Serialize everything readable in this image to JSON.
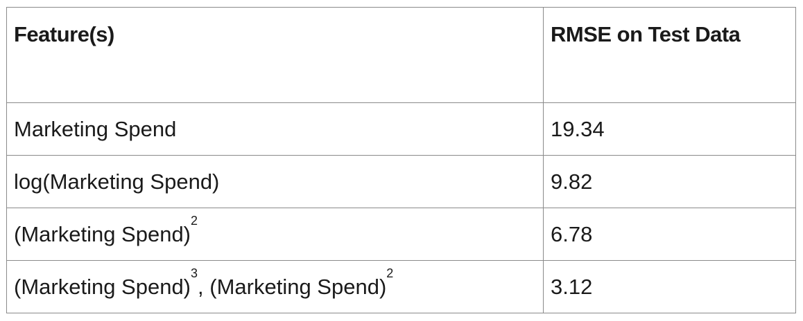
{
  "table": {
    "headers": {
      "feature": "Feature(s)",
      "rmse": "RMSE on Test Data"
    },
    "rows": [
      {
        "feature_base": "Marketing Spend",
        "rmse": "19.34"
      },
      {
        "feature_base": "log(Marketing Spend)",
        "rmse": "9.82"
      },
      {
        "feature_base": "(Marketing Spend)",
        "feature_sup": "2",
        "rmse": "6.78"
      },
      {
        "feature_base": "(Marketing Spend)",
        "feature_sup": "3",
        "feature_sep": ", ",
        "feature_base2": "(Marketing Spend)",
        "feature_sup2": "2",
        "rmse": "3.12"
      }
    ]
  }
}
